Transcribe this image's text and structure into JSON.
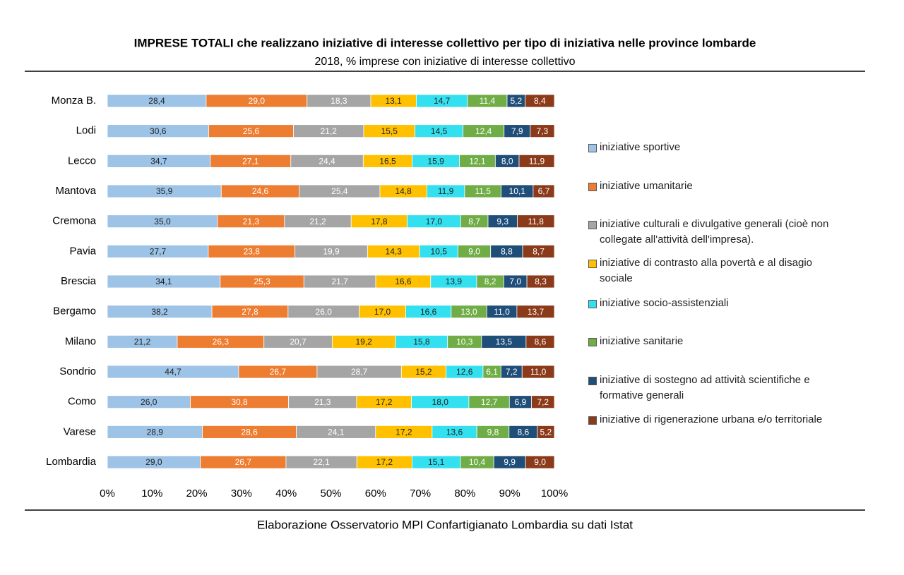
{
  "chart_data": {
    "type": "bar",
    "orientation": "horizontal",
    "stacking": "percent",
    "title": "IMPRESE TOTALI che realizzano iniziative di interesse collettivo per tipo di iniziativa nelle province lombarde",
    "subtitle": "2018, % imprese con iniziative di interesse collettivo",
    "source": "Elaborazione Osservatorio MPI Confartigianato Lombardia su dati Istat",
    "categories": [
      "Monza B.",
      "Lodi",
      "Lecco",
      "Mantova",
      "Cremona",
      "Pavia",
      "Brescia",
      "Bergamo",
      "Milano",
      "Sondrio",
      "Como",
      "Varese",
      "Lombardia"
    ],
    "xlim": [
      0,
      100
    ],
    "xticks": [
      {
        "value": 0,
        "label": "0%"
      },
      {
        "value": 10,
        "label": "10%"
      },
      {
        "value": 20,
        "label": "20%"
      },
      {
        "value": 30,
        "label": "30%"
      },
      {
        "value": 40,
        "label": "40%"
      },
      {
        "value": 50,
        "label": "50%"
      },
      {
        "value": 60,
        "label": "60%"
      },
      {
        "value": 70,
        "label": "70%"
      },
      {
        "value": 80,
        "label": "80%"
      },
      {
        "value": 90,
        "label": "90%"
      },
      {
        "value": 100,
        "label": "100%"
      }
    ],
    "legend": "right",
    "series": [
      {
        "name": "iniziative sportive",
        "color": "#9dc3e6",
        "values": [
          28.4,
          30.6,
          34.7,
          35.9,
          35.0,
          27.7,
          34.1,
          38.2,
          21.2,
          44.7,
          26.0,
          28.9,
          29.0
        ],
        "value_labels": [
          "28,4",
          "30,6",
          "34,7",
          "35,9",
          "35,0",
          "27,7",
          "34,1",
          "38,2",
          "21,2",
          "44,7",
          "26,0",
          "28,9",
          "29,0"
        ]
      },
      {
        "name": "iniziative umanitarie",
        "color": "#ed7d31",
        "values": [
          29.0,
          25.6,
          27.1,
          24.6,
          21.3,
          23.8,
          25.3,
          27.8,
          26.3,
          26.7,
          30.8,
          28.6,
          26.7
        ],
        "value_labels": [
          "29,0",
          "25,6",
          "27,1",
          "24,6",
          "21,3",
          "23,8",
          "25,3",
          "27,8",
          "26,3",
          "26,7",
          "30,8",
          "28,6",
          "26,7"
        ]
      },
      {
        "name": "iniziative culturali e divulgative generali (cioè non collegate all'attività  dell'impresa).",
        "color": "#a5a5a5",
        "values": [
          18.3,
          21.2,
          24.4,
          25.4,
          21.2,
          19.9,
          21.7,
          26.0,
          20.7,
          28.7,
          21.3,
          24.1,
          22.1
        ],
        "value_labels": [
          "18,3",
          "21,2",
          "24,4",
          "25,4",
          "21,2",
          "19,9",
          "21,7",
          "26,0",
          "20,7",
          "28,7",
          "21,3",
          "24,1",
          "22,1"
        ]
      },
      {
        "name": "iniziative di contrasto alla povertà  e al disagio sociale",
        "color": "#ffc000",
        "values": [
          13.1,
          15.5,
          16.5,
          14.8,
          17.8,
          14.3,
          16.6,
          17.0,
          19.2,
          15.2,
          17.2,
          17.2,
          17.2
        ],
        "value_labels": [
          "13,1",
          "15,5",
          "16,5",
          "14,8",
          "17,8",
          "14,3",
          "16,6",
          "17,0",
          "19,2",
          "15,2",
          "17,2",
          "17,2",
          "17,2"
        ]
      },
      {
        "name": "iniziative socio-assistenziali",
        "color": "#33e0f0",
        "values": [
          14.7,
          14.5,
          15.9,
          11.9,
          17.0,
          10.5,
          13.9,
          16.6,
          15.8,
          12.6,
          18.0,
          13.6,
          15.1
        ],
        "value_labels": [
          "14,7",
          "14,5",
          "15,9",
          "11,9",
          "17,0",
          "10,5",
          "13,9",
          "16,6",
          "15,8",
          "12,6",
          "18,0",
          "13,6",
          "15,1"
        ]
      },
      {
        "name": "iniziative sanitarie",
        "color": "#70ad47",
        "values": [
          11.4,
          12.4,
          12.1,
          11.5,
          8.7,
          9.0,
          8.2,
          13.0,
          10.3,
          6.1,
          12.7,
          9.8,
          10.4
        ],
        "value_labels": [
          "11,4",
          "12,4",
          "12,1",
          "11,5",
          "8,7",
          "9,0",
          "8,2",
          "13,0",
          "10,3",
          "6,1",
          "12,7",
          "9,8",
          "10,4"
        ]
      },
      {
        "name": "iniziative di sostegno ad attività  scientifiche e formative generali",
        "color": "#1f4e79",
        "values": [
          5.2,
          7.9,
          8.0,
          10.1,
          9.3,
          8.8,
          7.0,
          11.0,
          13.5,
          7.2,
          6.9,
          8.6,
          9.9
        ],
        "value_labels": [
          "5,2",
          "7,9",
          "8,0",
          "10,1",
          "9,3",
          "8,8",
          "7,0",
          "11,0",
          "13,5",
          "7,2",
          "6,9",
          "8,6",
          "9,9"
        ]
      },
      {
        "name": "iniziative di rigenerazione urbana e/o territoriale",
        "color": "#8b3a1a",
        "values": [
          8.4,
          7.3,
          11.9,
          6.7,
          11.8,
          8.7,
          8.3,
          13.7,
          8.6,
          11.0,
          7.2,
          5.2,
          9.0
        ],
        "value_labels": [
          "8,4",
          "7,3",
          "11,9",
          "6,7",
          "11,8",
          "8,7",
          "8,3",
          "13,7",
          "8,6",
          "11,0",
          "7,2",
          "5,2",
          "9,0"
        ]
      }
    ]
  }
}
